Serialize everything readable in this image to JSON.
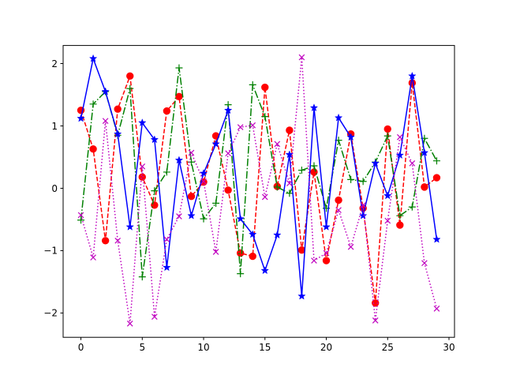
{
  "chart_data": {
    "type": "line",
    "title": "",
    "xlabel": "",
    "ylabel": "",
    "xlim": [
      -1.45,
      30.45
    ],
    "ylim": [
      -2.39,
      2.29
    ],
    "xticks": [
      0,
      5,
      10,
      15,
      20,
      25,
      30
    ],
    "yticks": [
      -2,
      -1,
      0,
      1,
      2
    ],
    "grid": false,
    "legend": "none",
    "x": [
      0,
      1,
      2,
      3,
      4,
      5,
      6,
      7,
      8,
      9,
      10,
      11,
      12,
      13,
      14,
      15,
      16,
      17,
      18,
      19,
      20,
      21,
      22,
      23,
      24,
      25,
      26,
      27,
      28,
      29
    ],
    "series": [
      {
        "color": "#ff0000",
        "linestyle": "dashed",
        "marker": "circle",
        "values": [
          1.25,
          0.63,
          -0.84,
          1.27,
          1.8,
          0.18,
          -0.27,
          1.24,
          1.47,
          -0.13,
          0.1,
          0.84,
          -0.03,
          -1.04,
          -1.09,
          1.62,
          0.03,
          0.93,
          -0.99,
          0.26,
          -1.16,
          -0.19,
          0.87,
          -0.32,
          -1.84,
          0.95,
          -0.59,
          1.69,
          0.02,
          0.17
        ]
      },
      {
        "color": "#008000",
        "linestyle": "dashdot",
        "marker": "plus",
        "values": [
          -0.51,
          1.35,
          1.55,
          0.85,
          1.6,
          -1.42,
          -0.04,
          0.26,
          1.93,
          0.42,
          -0.49,
          -0.24,
          1.34,
          -1.37,
          1.66,
          1.15,
          0.02,
          -0.08,
          0.29,
          0.36,
          -0.32,
          0.77,
          0.14,
          0.11,
          0.42,
          0.84,
          -0.44,
          -0.3,
          0.8,
          0.44
        ]
      },
      {
        "color": "#0000ff",
        "linestyle": "solid",
        "marker": "star",
        "values": [
          1.12,
          2.08,
          1.55,
          0.87,
          -0.62,
          1.05,
          0.78,
          -1.27,
          0.45,
          -0.44,
          0.24,
          0.71,
          1.25,
          -0.49,
          -0.74,
          -1.32,
          -0.75,
          0.54,
          -1.73,
          1.29,
          -0.62,
          1.13,
          0.82,
          -0.44,
          0.4,
          -0.12,
          0.53,
          1.8,
          0.57,
          -0.82
        ]
      },
      {
        "color": "#bf00bf",
        "linestyle": "dotted",
        "marker": "x",
        "values": [
          -0.43,
          -1.11,
          1.08,
          -0.84,
          -2.17,
          0.35,
          -2.06,
          -0.82,
          -0.45,
          0.57,
          0.11,
          -1.02,
          0.56,
          0.98,
          1.01,
          -0.14,
          0.71,
          0.08,
          2.1,
          -1.16,
          -1.04,
          -0.35,
          -0.94,
          -0.27,
          -2.12,
          -0.52,
          0.82,
          0.4,
          -1.2,
          -1.93
        ]
      }
    ]
  }
}
